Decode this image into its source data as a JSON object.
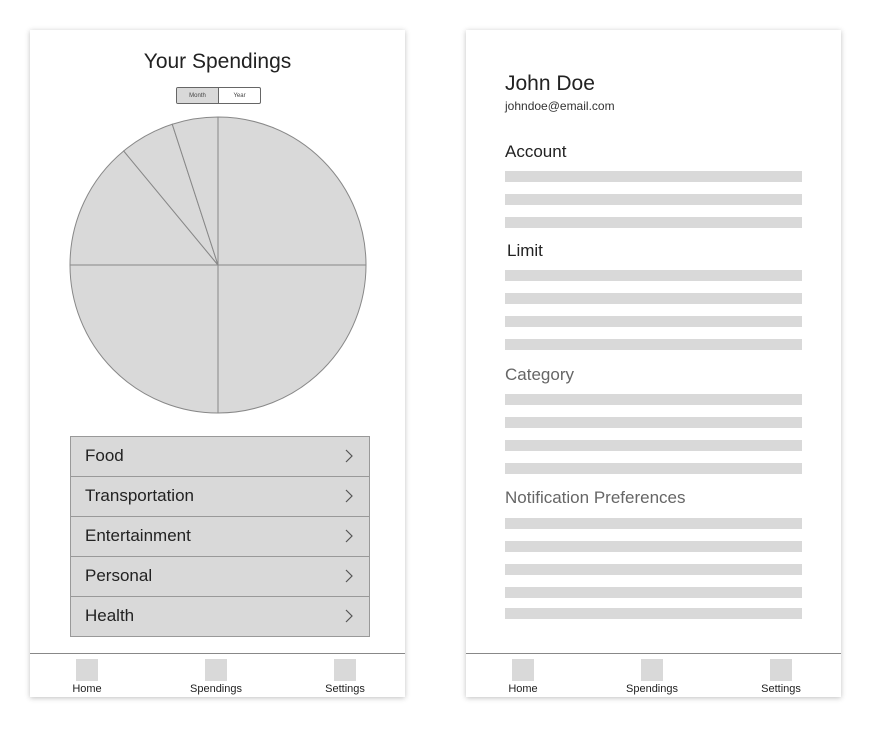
{
  "spendings_screen": {
    "title": "Your Spendings",
    "toggle": {
      "options": [
        "Month",
        "Year"
      ],
      "selected": "Month"
    },
    "pie_chart": {
      "type": "pie",
      "slices": [
        {
          "share": 0.25
        },
        {
          "share": 0.25
        },
        {
          "share": 0.25
        },
        {
          "share": 0.14
        },
        {
          "share": 0.06
        },
        {
          "share": 0.05
        }
      ],
      "fill_color": "#d9d9d9",
      "stroke_color": "#888888"
    },
    "categories": [
      {
        "label": "Food"
      },
      {
        "label": "Transportation"
      },
      {
        "label": "Entertainment"
      },
      {
        "label": "Personal"
      },
      {
        "label": "Health"
      }
    ],
    "tabbar": {
      "home": "Home",
      "spendings": "Spendings",
      "settings": "Settings"
    }
  },
  "settings_screen": {
    "user": {
      "name": "John Doe",
      "email": "johndoe@email.com"
    },
    "sections": {
      "account": {
        "title": "Account",
        "rows": 3
      },
      "limit": {
        "title": "Limit",
        "rows": 4
      },
      "category": {
        "title": "Category",
        "rows": 4
      },
      "notifications": {
        "title": "Notification Preferences",
        "rows": 5
      }
    },
    "tabbar": {
      "home": "Home",
      "spendings": "Spendings",
      "settings": "Settings"
    }
  },
  "colors": {
    "placeholder": "#d9d9d9",
    "border": "#999999",
    "text": "#222222",
    "muted_heading": "#666666"
  },
  "icons": {
    "category_row": "chevron-right-icon",
    "tab": "placeholder-square-icon"
  }
}
